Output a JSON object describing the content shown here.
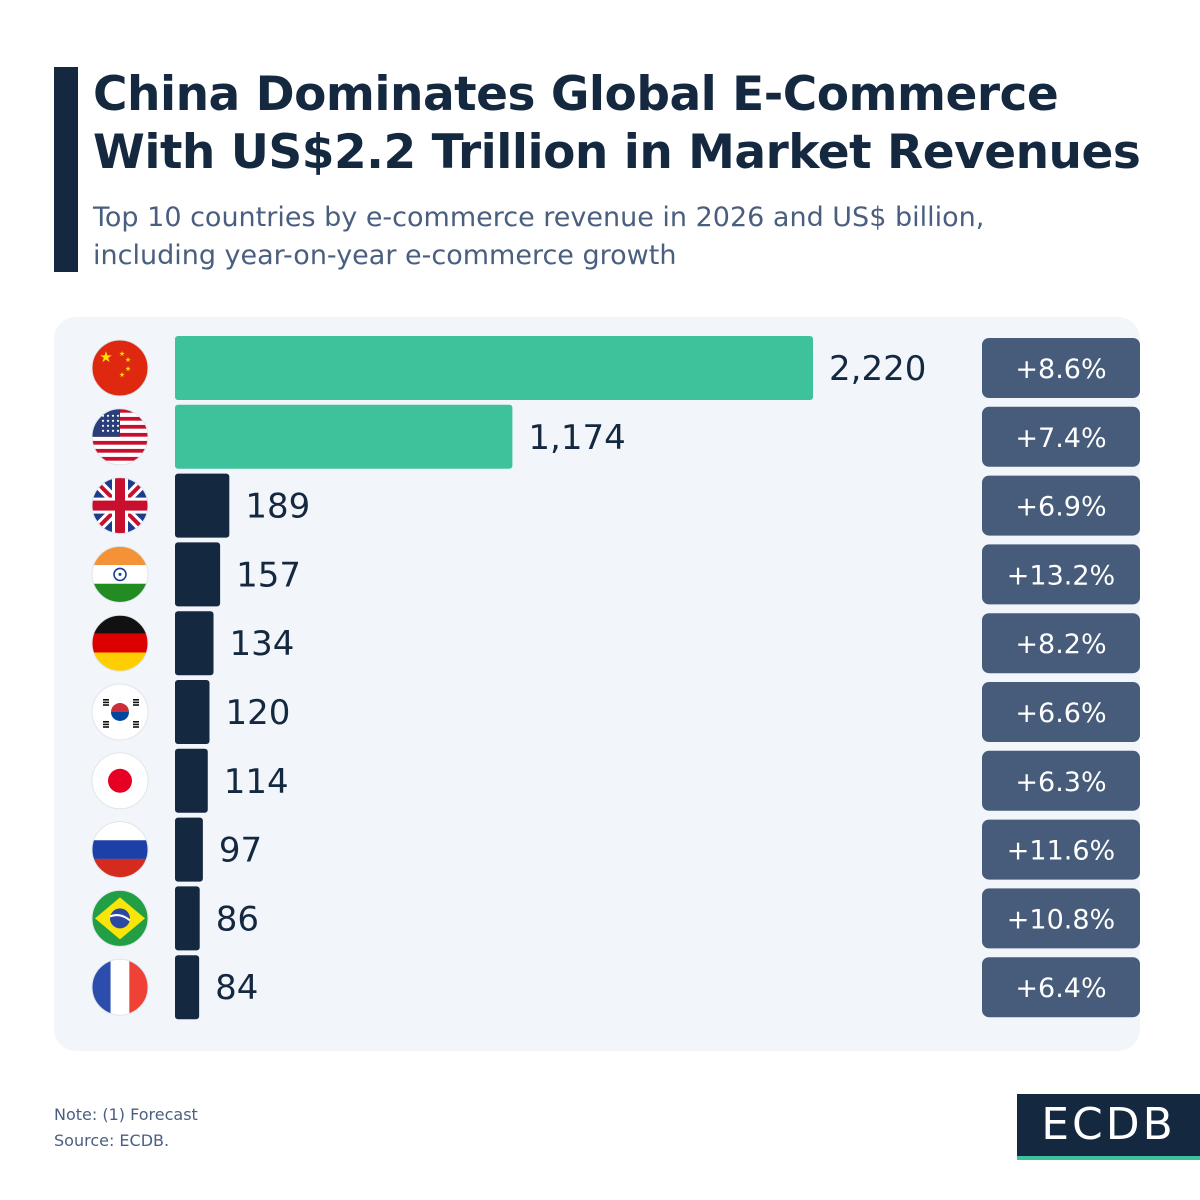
{
  "header": {
    "title_line1": "China Dominates Global E-Commerce",
    "title_line2": "With US$2.2 Trillion in Market Revenues",
    "subtitle_line1": "Top 10 countries by e-commerce revenue in 2026 and US$ billion,",
    "subtitle_line2": "including year-on-year e-commerce growth"
  },
  "chart_data": {
    "type": "bar",
    "orientation": "horizontal",
    "title": "China Dominates Global E-Commerce With US$2.2 Trillion in Market Revenues",
    "unit": "US$ billion",
    "year": "2026",
    "categories": [
      "China",
      "United States",
      "United Kingdom",
      "India",
      "Germany",
      "South Korea",
      "Japan",
      "Russia",
      "Brazil",
      "France"
    ],
    "flags": [
      "china-flag-icon",
      "usa-flag-icon",
      "uk-flag-icon",
      "india-flag-icon",
      "germany-flag-icon",
      "south-korea-flag-icon",
      "japan-flag-icon",
      "russia-flag-icon",
      "brazil-flag-icon",
      "france-flag-icon"
    ],
    "values": [
      2220,
      1174,
      189,
      157,
      134,
      120,
      114,
      97,
      86,
      84
    ],
    "value_labels": [
      "2,220",
      "1,174",
      "189",
      "157",
      "134",
      "120",
      "114",
      "97",
      "86",
      "84"
    ],
    "growth_labels": [
      "+8.6%",
      "+7.4%",
      "+6.9%",
      "+13.2%",
      "+8.2%",
      "+6.6%",
      "+6.3%",
      "+11.6%",
      "+10.8%",
      "+6.4%"
    ],
    "highlight_count": 2,
    "colors": {
      "highlight": "#3ec29b",
      "default": "#142840",
      "badge": "#475c7a"
    },
    "xlim": [
      0,
      2220
    ]
  },
  "footer": {
    "note": "Note: (1) Forecast",
    "source": "Source: ECDB.",
    "logo_text": "ECDB"
  }
}
